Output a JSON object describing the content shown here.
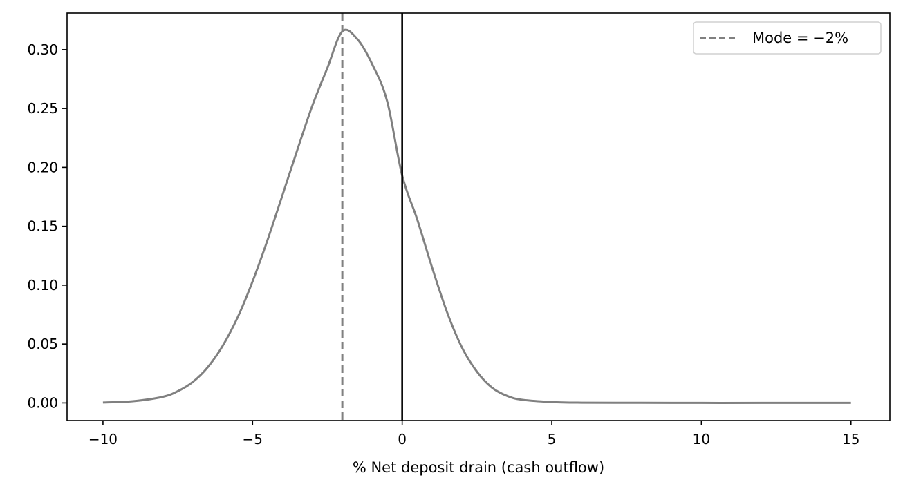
{
  "chart_data": {
    "type": "line",
    "title": "",
    "xlabel": "% Net deposit drain (cash outflow)",
    "ylabel": "",
    "xlim": [
      -11.2,
      16.3
    ],
    "ylim": [
      -0.015,
      0.331
    ],
    "xticks": [
      -10,
      -5,
      0,
      5,
      10,
      15
    ],
    "xtick_labels": [
      "−10",
      "−5",
      "0",
      "5",
      "10",
      "15"
    ],
    "yticks": [
      0.0,
      0.05,
      0.1,
      0.15,
      0.2,
      0.25,
      0.3
    ],
    "ytick_labels": [
      "0.00",
      "0.05",
      "0.10",
      "0.15",
      "0.20",
      "0.25",
      "0.30"
    ],
    "grid": false,
    "legend_placement": "top-right",
    "series": [
      {
        "role": "density",
        "color": "#808080",
        "x": [
          -10,
          -9,
          -8,
          -7.5,
          -7,
          -6.5,
          -6,
          -5.5,
          -5,
          -4.5,
          -4,
          -3.5,
          -3,
          -2.5,
          -2,
          -1.5,
          -1,
          -0.5,
          0,
          0.5,
          1,
          1.5,
          2,
          2.5,
          3,
          3.5,
          4,
          5,
          6,
          8,
          10,
          12,
          15
        ],
        "y": [
          0.0003,
          0.0014,
          0.0052,
          0.0099,
          0.0177,
          0.0303,
          0.0484,
          0.0727,
          0.1032,
          0.1383,
          0.1766,
          0.2152,
          0.2525,
          0.2845,
          0.3155,
          0.309,
          0.2875,
          0.256,
          0.193,
          0.156,
          0.115,
          0.077,
          0.047,
          0.0265,
          0.013,
          0.006,
          0.0027,
          0.0007,
          0.0002,
          0.0001,
          0.0,
          0.0,
          0.0
        ]
      }
    ],
    "reference_lines": [
      {
        "name": "Mode = −2%",
        "x": -2,
        "style": "dashed",
        "color": "#808080",
        "in_legend": true
      },
      {
        "x": 0,
        "style": "solid",
        "color": "#000000",
        "in_legend": false
      }
    ]
  }
}
